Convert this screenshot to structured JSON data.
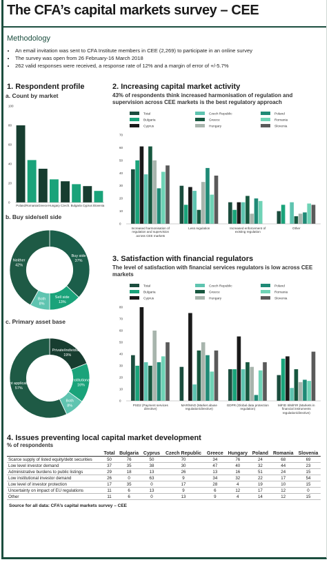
{
  "title": "The CFA’s capital markets survey – CEE",
  "methodology": {
    "heading": "Methodology",
    "bullets": [
      "An email invitation was sent to CFA Institute members in CEE (2,269) to participate in an online survey",
      "The survey was open from 26 February-16 March 2018",
      "262 valid responses were received, a response rate of 12% and a margin of error of +/-5.7%"
    ]
  },
  "section_1_title": "1. Respondent profile",
  "chart_data": [
    {
      "type": "bar",
      "title": "a. Count by market",
      "categories": [
        "Poland",
        "Romania",
        "Greece",
        "Hungary",
        "Czech.",
        "Bulgaria",
        "Cyprus",
        "Slovenia"
      ],
      "values": [
        80,
        44,
        35,
        24,
        22,
        19,
        17,
        12
      ],
      "colors": [
        "#173d30",
        "#1aa37a",
        "#173d30",
        "#1aa37a",
        "#173d30",
        "#1aa37a",
        "#173d30",
        "#1aa37a"
      ],
      "ylim": [
        0,
        100
      ],
      "yticks": [
        0,
        20,
        40,
        60,
        80,
        100
      ]
    },
    {
      "type": "donut",
      "title": "b. Buy side/sell side",
      "categories": [
        "Buy side",
        "Sell side",
        "Both",
        "Neither"
      ],
      "values": [
        37,
        13,
        8,
        42
      ],
      "value_labels": [
        "37%",
        "13%",
        "8%",
        "42%"
      ],
      "colors": [
        "#1b5e4a",
        "#1aa37a",
        "#5fc4b0",
        "#1e5a45"
      ]
    },
    {
      "type": "donut",
      "title": "c. Primary asset base",
      "categories": [
        "Private/individuals",
        "Institutional",
        "Both",
        "Not applicable"
      ],
      "values": [
        19,
        16,
        8,
        57
      ],
      "value_labels": [
        "19%",
        "16%",
        "8%",
        "57%"
      ],
      "colors": [
        "#173d30",
        "#1aa37a",
        "#5fc4b0",
        "#1e5a45"
      ]
    },
    {
      "type": "grouped_bar",
      "title": "2. Increasing capital market activity",
      "subtitle": "43% of respondents think increased harmonisation of regulation and supervision across CEE markets is the best regulatory approach",
      "categories": [
        "Increased harmonisation of regulation and supervision across CEE markets",
        "Less regulation",
        "Increased enforcement of existing regulation",
        "Other"
      ],
      "ylim": [
        0,
        70
      ],
      "yticks": [
        0,
        10,
        20,
        30,
        40,
        50,
        60,
        70
      ],
      "series": [
        {
          "name": "Total",
          "color": "#1b4d3e",
          "values": [
            43,
            30,
            17,
            10
          ]
        },
        {
          "name": "Bulgaria",
          "color": "#1aa37a",
          "values": [
            50,
            15,
            11,
            15
          ]
        },
        {
          "name": "Cyprus",
          "color": "#1a1a1a",
          "values": [
            61,
            29,
            17,
            0
          ]
        },
        {
          "name": "Czech Republic",
          "color": "#5fc4b0",
          "values": [
            39,
            26,
            17,
            17
          ]
        },
        {
          "name": "Greece",
          "color": "#17573f",
          "values": [
            61,
            11,
            22,
            6
          ]
        },
        {
          "name": "Hungary",
          "color": "#a8b5ad",
          "values": [
            50,
            33,
            8,
            8
          ]
        },
        {
          "name": "Poland",
          "color": "#1f8a76",
          "values": [
            28,
            44,
            20,
            9
          ]
        },
        {
          "name": "Romania",
          "color": "#6fd3b6",
          "values": [
            41,
            23,
            18,
            16
          ]
        },
        {
          "name": "Slovenia",
          "color": "#5a5a5a",
          "values": [
            46,
            38,
            0,
            15
          ]
        }
      ]
    },
    {
      "type": "grouped_bar",
      "title": "3. Satisfaction with financial regulators",
      "subtitle": "The level of satisfaction with financial services regulators is low across CEE markets",
      "categories": [
        "PSD2 (Payment services directive)",
        "MAR/MAD (Market abuse regulation/directive)",
        "GDPR (Global data protection regulation)",
        "MiFID II/MiFIR (Markets in financial instruments regulation/directive)"
      ],
      "ylim": [
        0,
        80
      ],
      "yticks": [
        0,
        10,
        20,
        30,
        40,
        50,
        60,
        70,
        80
      ],
      "series": [
        {
          "name": "Total",
          "color": "#1b4d3e",
          "values": [
            39,
            29,
            27,
            22
          ]
        },
        {
          "name": "Bulgaria",
          "color": "#1aa37a",
          "values": [
            30,
            0,
            27,
            36
          ]
        },
        {
          "name": "Cyprus",
          "color": "#1a1a1a",
          "values": [
            80,
            75,
            55,
            38
          ]
        },
        {
          "name": "Czech Republic",
          "color": "#5fc4b0",
          "values": [
            33,
            14,
            27,
            11
          ]
        },
        {
          "name": "Greece",
          "color": "#17573f",
          "values": [
            30,
            43,
            33,
            27
          ]
        },
        {
          "name": "Hungary",
          "color": "#a8b5ad",
          "values": [
            60,
            50,
            29,
            16
          ]
        },
        {
          "name": "Poland",
          "color": "#1f8a76",
          "values": [
            33,
            39,
            5,
            18
          ]
        },
        {
          "name": "Romania",
          "color": "#6fd3b6",
          "values": [
            38,
            25,
            26,
            17
          ]
        },
        {
          "name": "Slovenia",
          "color": "#5a5a5a",
          "values": [
            50,
            43,
            33,
            42
          ]
        }
      ]
    }
  ],
  "table": {
    "title": "4. Issues preventing local capital market development",
    "subtitle": "% of respondents",
    "columns": [
      "Total",
      "Bulgaria",
      "Cyprus",
      "Czech Republic",
      "Greece",
      "Hungary",
      "Poland",
      "Romania",
      "Slovenia"
    ],
    "rows": [
      [
        "Scarce supply of listed equity/debt securities",
        50,
        76,
        50,
        70,
        34,
        76,
        24,
        68,
        69
      ],
      [
        "Low level investor demand",
        37,
        35,
        38,
        30,
        47,
        40,
        32,
        44,
        23
      ],
      [
        "Administrative burdens to public listings",
        29,
        18,
        13,
        26,
        13,
        16,
        51,
        24,
        15
      ],
      [
        "Low institutional investor demand",
        26,
        0,
        63,
        9,
        34,
        32,
        22,
        17,
        54
      ],
      [
        "Low level of investor protection",
        17,
        35,
        0,
        17,
        28,
        4,
        19,
        10,
        15
      ],
      [
        "Uncertainty on impact of EU regulations",
        11,
        6,
        13,
        9,
        6,
        12,
        17,
        12,
        0
      ],
      [
        "Other",
        11,
        6,
        0,
        13,
        9,
        4,
        14,
        12,
        15
      ]
    ]
  },
  "source": "Source for all data: CFA’s capital markets survey – CEE"
}
